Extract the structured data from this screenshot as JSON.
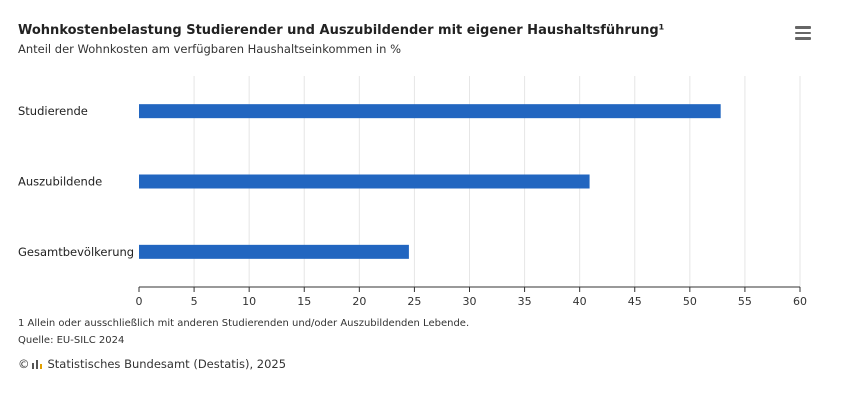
{
  "header": {
    "title": "Wohnkostenbelastung Studierender und Auszubildender mit eigener Haushaltsführung¹",
    "subtitle": "Anteil der Wohnkosten am verfügbaren Haushaltseinkommen in %"
  },
  "menu": {
    "icon": "hamburger-menu-icon"
  },
  "footer": {
    "footnote": "1 Allein oder ausschließlich mit anderen Studierenden und/oder Auszubildenden Lebende.",
    "source": "Quelle: EU-SILC 2024",
    "copyright_symbol": "©",
    "logo_icon": "destatis-logo-icon",
    "credit": "Statistisches Bundesamt (Destatis), 2025"
  },
  "colors": {
    "bar": "#2266c0",
    "grid": "#e6e6e6",
    "axis": "#333333"
  },
  "chart_data": {
    "type": "bar",
    "orientation": "horizontal",
    "categories": [
      "Studierende",
      "Auszubildende",
      "Gesamtbevölkerung"
    ],
    "values": [
      52.8,
      40.9,
      24.5
    ],
    "xlim": [
      0,
      60
    ],
    "xticks": [
      0,
      5,
      10,
      15,
      20,
      25,
      30,
      35,
      40,
      45,
      50,
      55,
      60
    ],
    "grid": true
  }
}
